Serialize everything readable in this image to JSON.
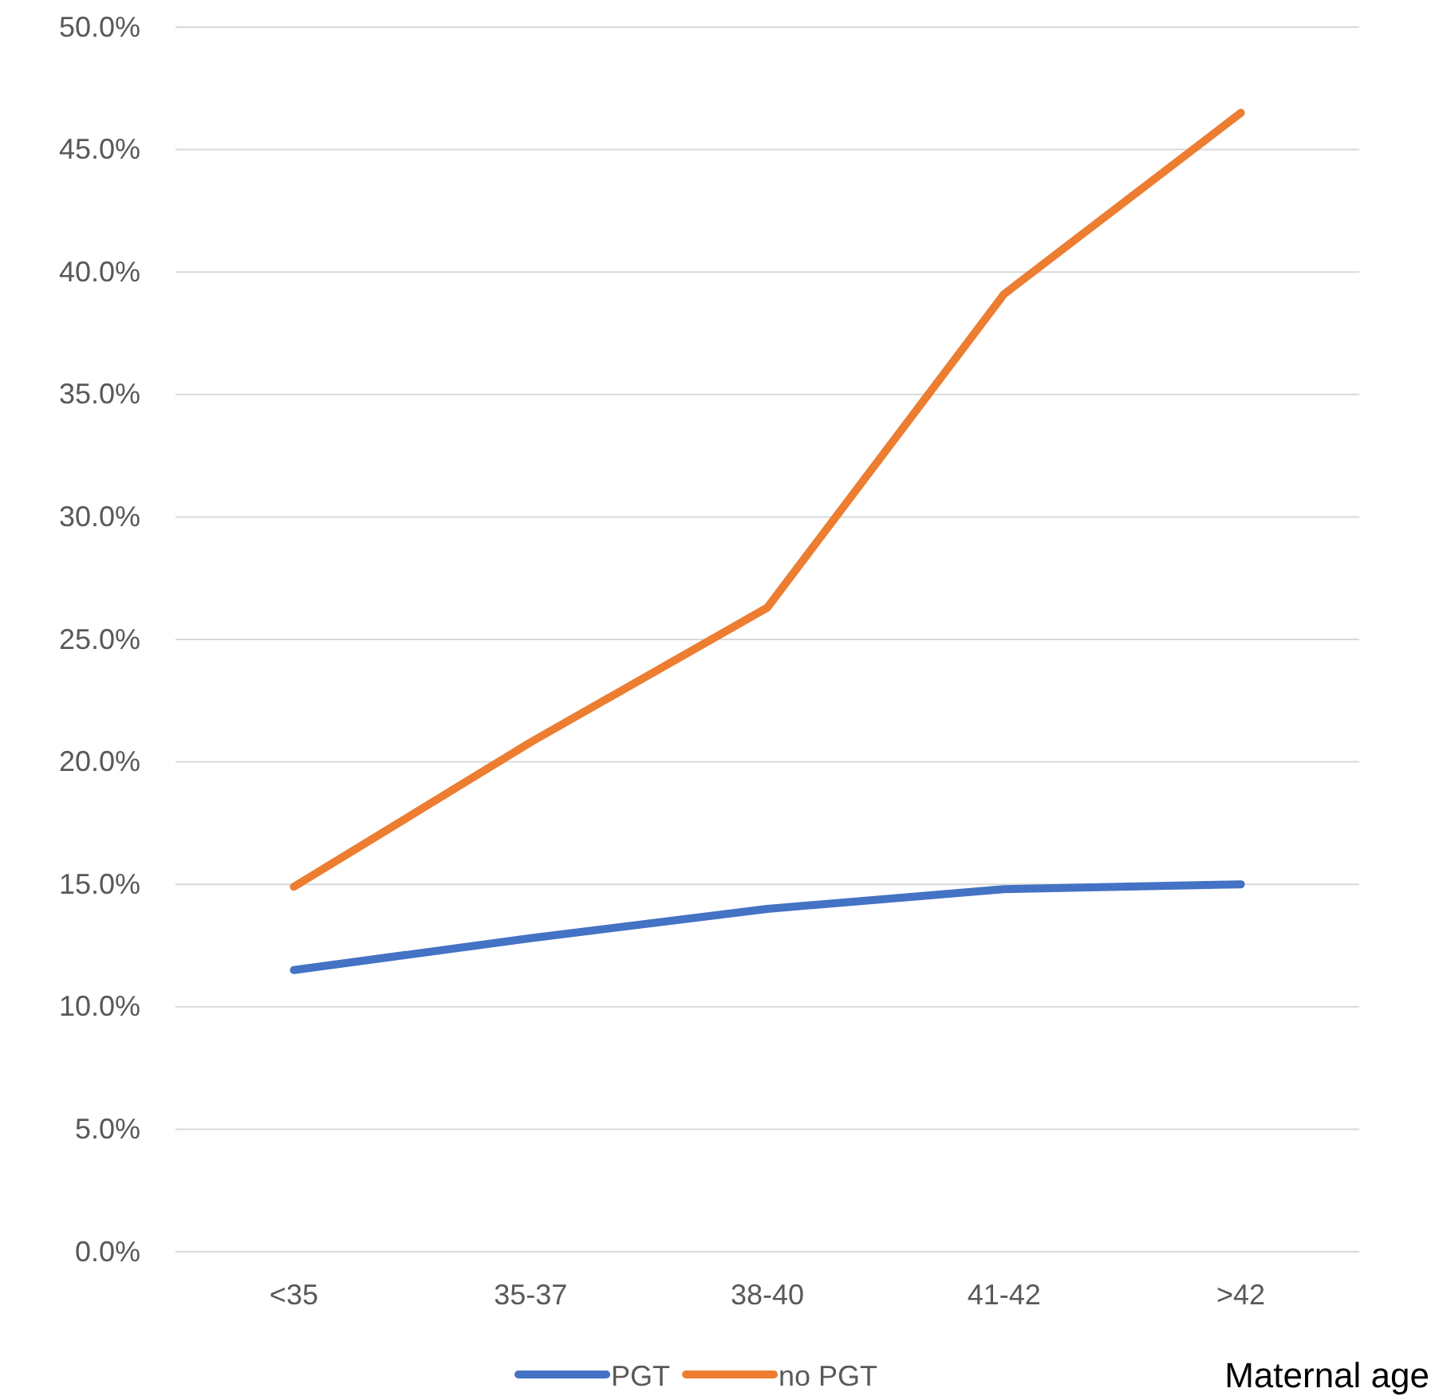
{
  "chart_data": {
    "type": "line",
    "xlabel": "Maternal age",
    "categories": [
      "<35",
      "35-37",
      "38-40",
      "41-42",
      ">42"
    ],
    "series": [
      {
        "name": "PGT",
        "color": "#4472c4",
        "values": [
          11.5,
          12.8,
          14.0,
          14.8,
          15.0
        ]
      },
      {
        "name": "no PGT",
        "color": "#ed7d31",
        "values": [
          14.9,
          20.8,
          26.3,
          39.1,
          46.5
        ]
      }
    ],
    "ylim": [
      0,
      50
    ],
    "yticks": [
      {
        "value": 0,
        "label": "0.0%"
      },
      {
        "value": 5,
        "label": "5.0%"
      },
      {
        "value": 10,
        "label": "10.0%"
      },
      {
        "value": 15,
        "label": "15.0%"
      },
      {
        "value": 20,
        "label": "20.0%"
      },
      {
        "value": 25,
        "label": "25.0%"
      },
      {
        "value": 30,
        "label": "30.0%"
      },
      {
        "value": 35,
        "label": "35.0%"
      },
      {
        "value": 40,
        "label": "40.0%"
      },
      {
        "value": 45,
        "label": "45.0%"
      },
      {
        "value": 50,
        "label": "50.0%"
      }
    ],
    "grid": "y",
    "legend": "bottom",
    "marker": "none",
    "line_style": "solid"
  }
}
